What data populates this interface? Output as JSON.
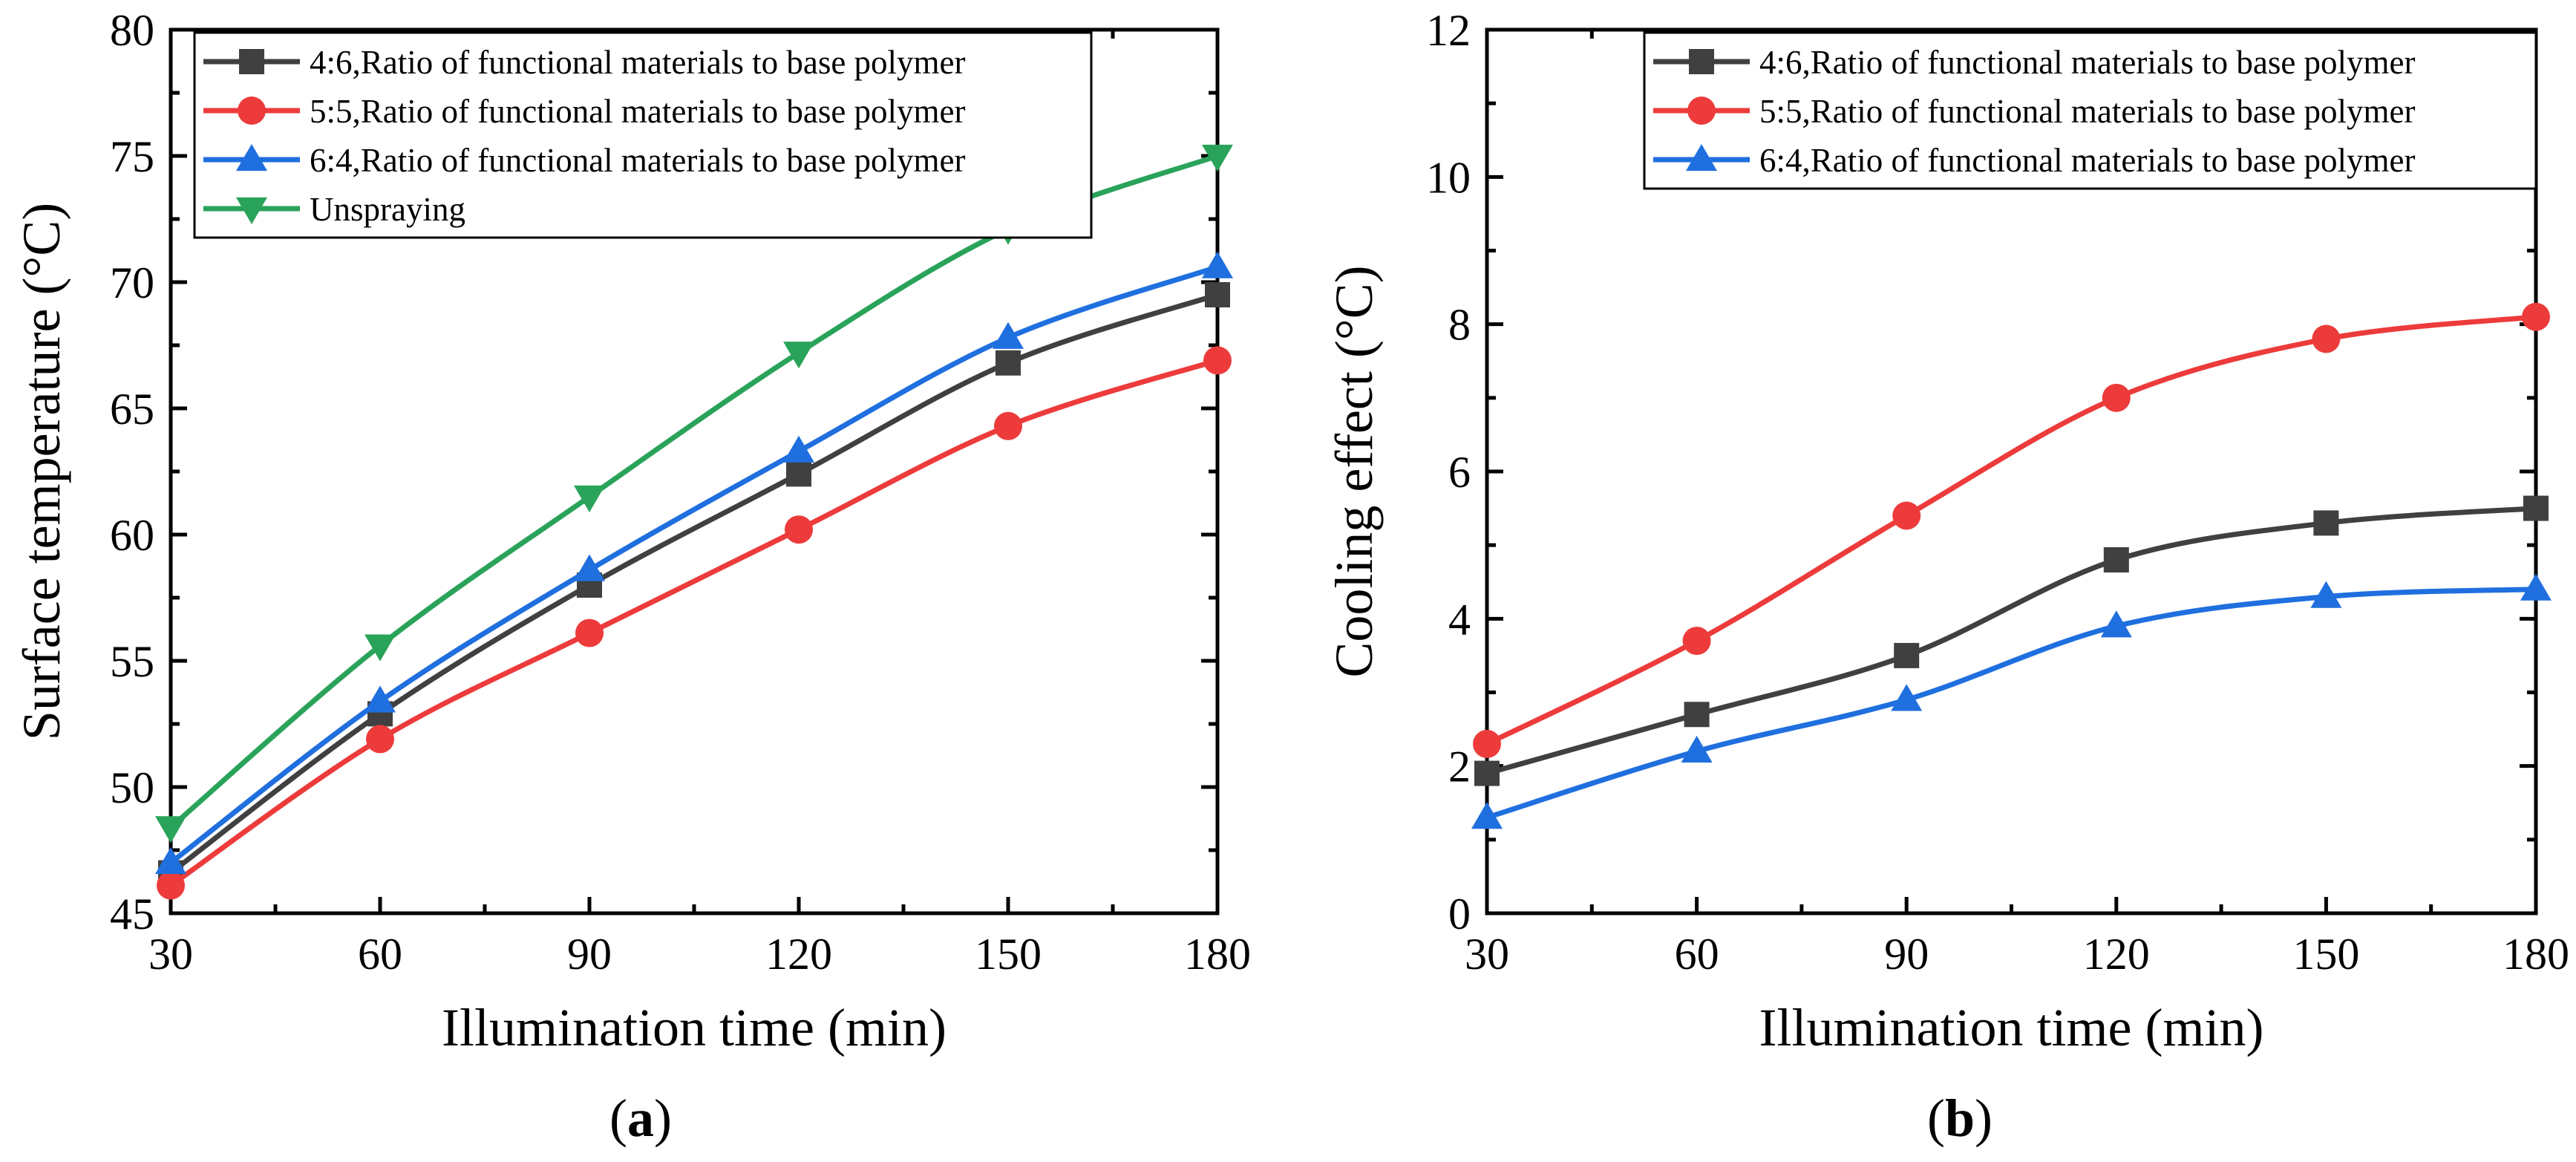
{
  "chart_data": [
    {
      "type": "line",
      "panel": "a",
      "xlabel": "Illumination time (min)",
      "ylabel": "Surface temperature (°C)",
      "x": [
        30,
        60,
        90,
        120,
        150,
        180
      ],
      "xlim": [
        30,
        180
      ],
      "ylim": [
        45,
        80
      ],
      "xticks": [
        30,
        60,
        90,
        120,
        150,
        180
      ],
      "yticks": [
        45,
        50,
        55,
        60,
        65,
        70,
        75,
        80
      ],
      "legend_position": "top-left",
      "series": [
        {
          "name": "4:6,Ratio of functional materials to base polymer",
          "marker": "square",
          "color": "#404040",
          "values": [
            46.6,
            52.9,
            58.0,
            62.4,
            66.8,
            69.5
          ]
        },
        {
          "name": "5:5,Ratio of functional materials to base polymer",
          "marker": "circle",
          "color": "#ed3b3b",
          "values": [
            46.1,
            51.9,
            56.1,
            60.2,
            64.3,
            66.9
          ]
        },
        {
          "name": "6:4,Ratio of functional materials to base polymer",
          "marker": "triangle-up",
          "color": "#1f6fdf",
          "values": [
            47.0,
            53.4,
            58.6,
            63.3,
            67.8,
            70.6
          ]
        },
        {
          "name": "Unspraying",
          "marker": "triangle-down",
          "color": "#2aa35a",
          "values": [
            48.4,
            55.6,
            61.5,
            67.2,
            72.1,
            75.0
          ]
        }
      ]
    },
    {
      "type": "line",
      "panel": "b",
      "xlabel": "Illumination time (min)",
      "ylabel": "Cooling effect (°C)",
      "x": [
        30,
        60,
        90,
        120,
        150,
        180
      ],
      "xlim": [
        30,
        180
      ],
      "ylim": [
        0,
        12
      ],
      "xticks": [
        30,
        60,
        90,
        120,
        150,
        180
      ],
      "yticks": [
        0,
        2,
        4,
        6,
        8,
        10,
        12
      ],
      "legend_position": "top-right",
      "series": [
        {
          "name": "4:6,Ratio of functional materials to base polymer",
          "marker": "square",
          "color": "#404040",
          "values": [
            1.9,
            2.7,
            3.5,
            4.8,
            5.3,
            5.5
          ]
        },
        {
          "name": "5:5,Ratio of functional materials to base polymer",
          "marker": "circle",
          "color": "#ed3b3b",
          "values": [
            2.3,
            3.7,
            5.4,
            7.0,
            7.8,
            8.1
          ]
        },
        {
          "name": "6:4,Ratio of functional materials to base polymer",
          "marker": "triangle-up",
          "color": "#1f6fdf",
          "values": [
            1.3,
            2.2,
            2.9,
            3.9,
            4.3,
            4.4
          ]
        }
      ]
    }
  ],
  "panels": [
    {
      "open": "(",
      "letter": "a",
      "close": ")"
    },
    {
      "open": "(",
      "letter": "b",
      "close": ")"
    }
  ]
}
